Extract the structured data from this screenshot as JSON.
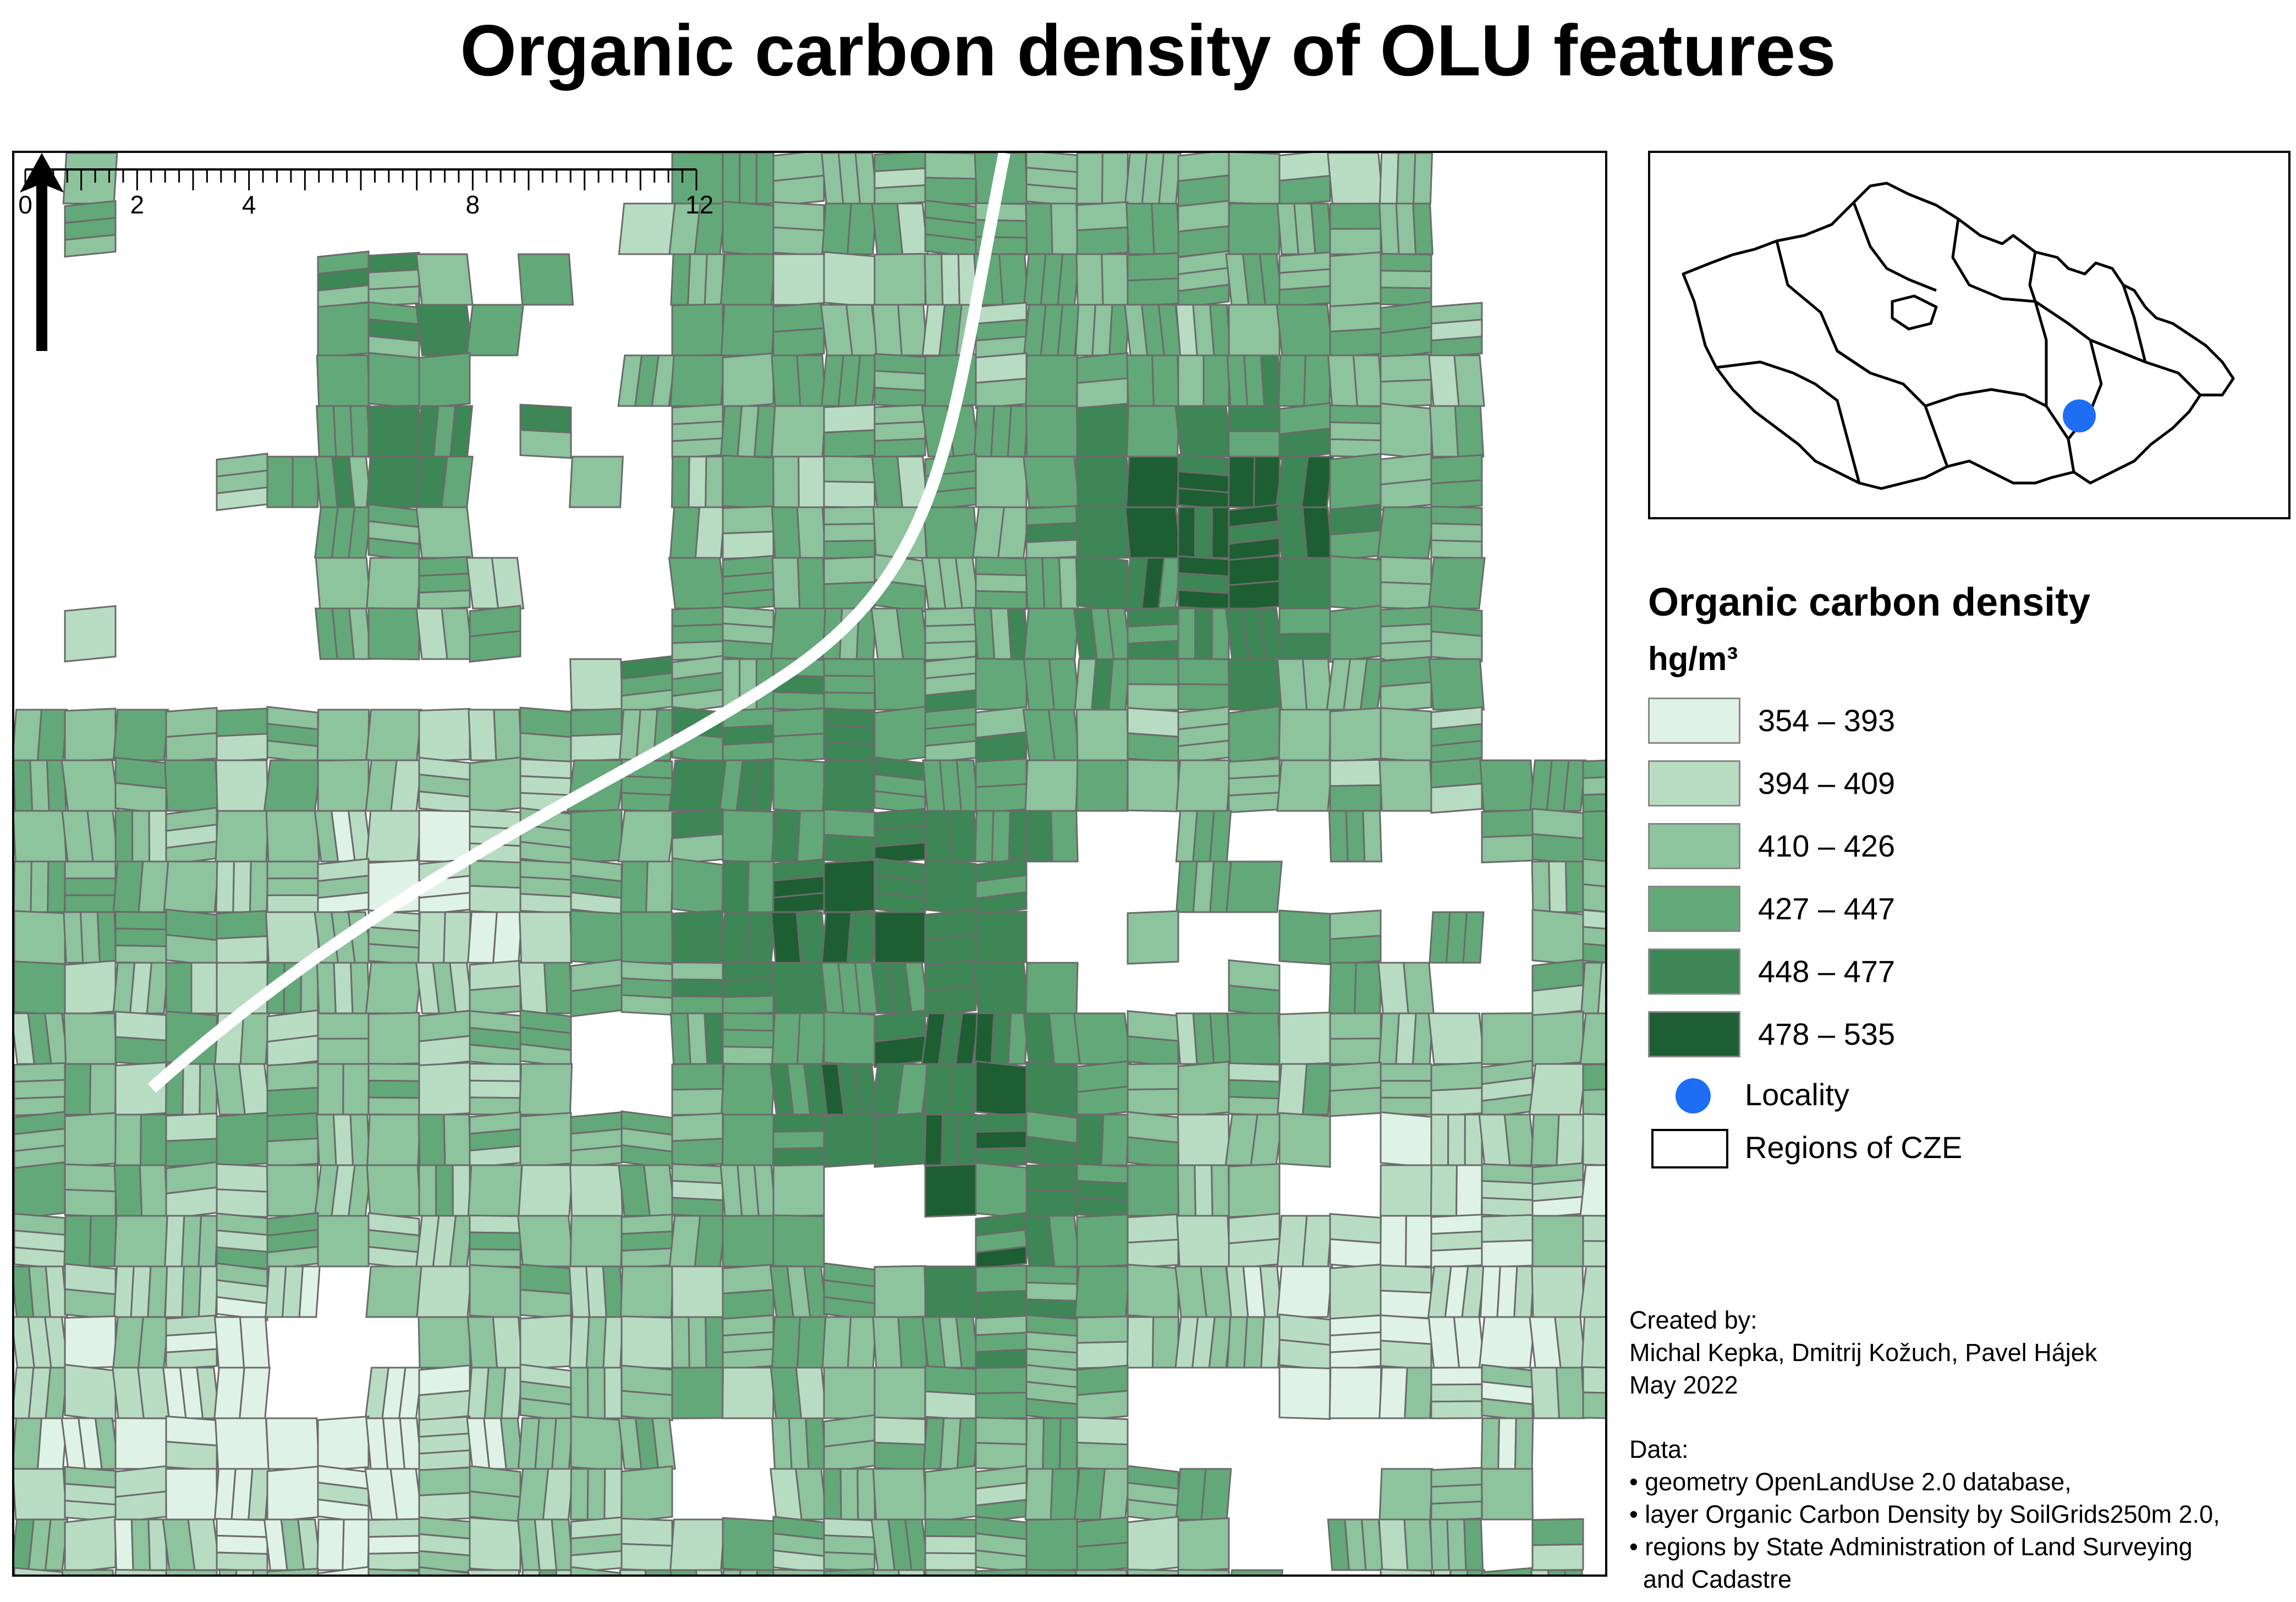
{
  "title": "Organic carbon density of OLU features",
  "legend": {
    "title": "Organic carbon density",
    "unit": "hg/m³",
    "classes": [
      {
        "label": "354 – 393",
        "color": "#dff2e6"
      },
      {
        "label": "394 – 409",
        "color": "#b8dcc2"
      },
      {
        "label": "410 – 426",
        "color": "#8dc39d"
      },
      {
        "label": "427 – 447",
        "color": "#63a878"
      },
      {
        "label": "448 – 477",
        "color": "#3d8655"
      },
      {
        "label": "478 – 535",
        "color": "#1d5e32"
      }
    ],
    "locality": {
      "label": "Locality",
      "color": "#1e6ef5"
    },
    "regions": {
      "label": "Regions of CZE"
    }
  },
  "scale_bar": {
    "ticks": [
      "0",
      "2",
      "4",
      "8"
    ],
    "end_label": "12 km"
  },
  "north_arrow": {
    "icon": "north-arrow-icon"
  },
  "credits": {
    "created_by_label": "Created by:",
    "authors": "Michal Kepka, Dmitrij Kožuch, Pavel Hájek",
    "date": "May 2022",
    "data_label": "Data:",
    "sources": [
      "• geometry OpenLandUse 2.0 database,",
      "• layer Organic Carbon Density by SoilGrids250m 2.0,",
      "• regions by State Administration of Land Surveying",
      "  and Cadastre"
    ]
  }
}
